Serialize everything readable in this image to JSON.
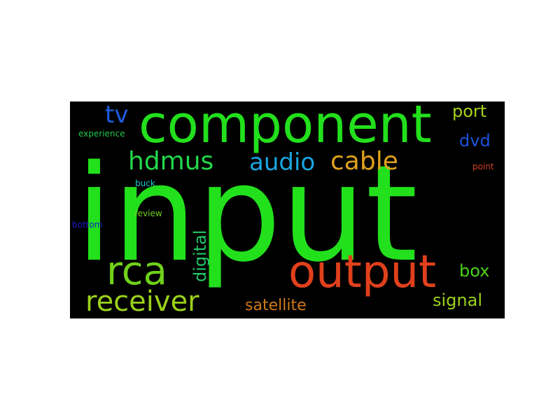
{
  "word_cloud": {
    "words": [
      {
        "id": "input",
        "text": "input",
        "color": "#22e01c"
      },
      {
        "id": "component",
        "text": "component",
        "color": "#22e01c"
      },
      {
        "id": "output",
        "text": "output",
        "color": "#e0401c"
      },
      {
        "id": "rca",
        "text": "rca",
        "color": "#6fd11a"
      },
      {
        "id": "receiver",
        "text": "receiver",
        "color": "#9bd11a"
      },
      {
        "id": "hdmus",
        "text": "hdmus",
        "color": "#22d84a"
      },
      {
        "id": "audio",
        "text": "audio",
        "color": "#1aa6e0"
      },
      {
        "id": "cable",
        "text": "cable",
        "color": "#e0a21c"
      },
      {
        "id": "tv",
        "text": "tv",
        "color": "#1c5ce0"
      },
      {
        "id": "port",
        "text": "port",
        "color": "#a6d11a"
      },
      {
        "id": "dvd",
        "text": "dvd",
        "color": "#1c52e0"
      },
      {
        "id": "box",
        "text": "box",
        "color": "#4ad11a"
      },
      {
        "id": "signal",
        "text": "signal",
        "color": "#9bd11a"
      },
      {
        "id": "satellite",
        "text": "satellite",
        "color": "#d17a1a"
      },
      {
        "id": "digital",
        "text": "digital",
        "color": "#22c86a"
      },
      {
        "id": "experience",
        "text": "experience",
        "color": "#22c84a"
      },
      {
        "id": "point",
        "text": "point",
        "color": "#d1401a"
      },
      {
        "id": "buck",
        "text": "buck",
        "color": "#1ac8d1"
      },
      {
        "id": "review",
        "text": "review",
        "color": "#6fd11a"
      },
      {
        "id": "bottom",
        "text": "bottom",
        "color": "#1a1ac8"
      }
    ]
  }
}
